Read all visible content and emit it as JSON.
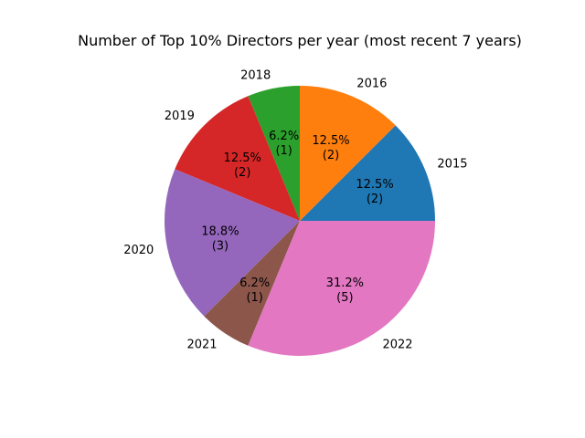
{
  "chart_data": {
    "type": "pie",
    "title": "Number of Top 10% Directors per year (most recent 7 years)",
    "categories": [
      "2015",
      "2016",
      "2018",
      "2019",
      "2020",
      "2021",
      "2022"
    ],
    "values": [
      2,
      2,
      1,
      2,
      3,
      1,
      5
    ],
    "percent_labels": [
      "12.5%",
      "12.5%",
      "6.2%",
      "12.5%",
      "18.8%",
      "6.2%",
      "31.2%"
    ],
    "count_labels": [
      "(2)",
      "(2)",
      "(1)",
      "(2)",
      "(3)",
      "(1)",
      "(5)"
    ],
    "colors": [
      "#1f77b4",
      "#ff7f0e",
      "#2ca02c",
      "#d62728",
      "#9467bd",
      "#8c564b",
      "#e377c2"
    ],
    "start_angle_deg": 0,
    "direction": "counterclockwise",
    "legend": "none"
  }
}
